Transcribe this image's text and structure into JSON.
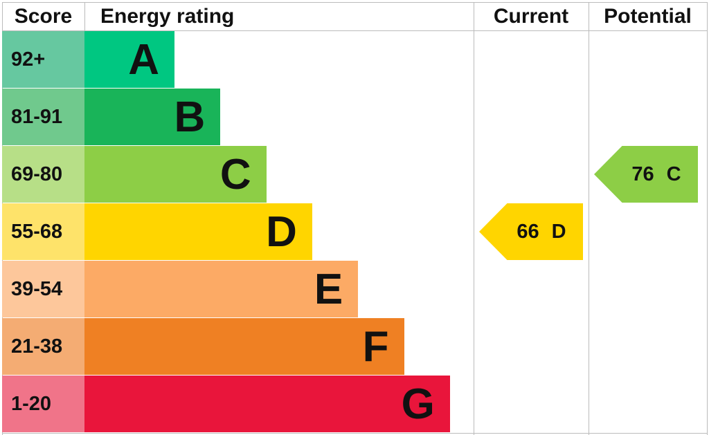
{
  "chart_data": {
    "type": "bar",
    "headers": {
      "score": "Score",
      "rating": "Energy rating",
      "current": "Current",
      "potential": "Potential"
    },
    "bands": [
      {
        "letter": "A",
        "range": "92+",
        "color": "#00c781",
        "score_color": "#66c8a0"
      },
      {
        "letter": "B",
        "range": "81-91",
        "color": "#19b459",
        "score_color": "#70c98d"
      },
      {
        "letter": "C",
        "range": "69-80",
        "color": "#8dce46",
        "score_color": "#b7df87"
      },
      {
        "letter": "D",
        "range": "55-68",
        "color": "#ffd500",
        "score_color": "#fee36a"
      },
      {
        "letter": "E",
        "range": "39-54",
        "color": "#fcaa65",
        "score_color": "#fdc79b"
      },
      {
        "letter": "F",
        "range": "21-38",
        "color": "#ef8023",
        "score_color": "#f4ac73"
      },
      {
        "letter": "G",
        "range": "1-20",
        "color": "#e9153b",
        "score_color": "#f07489"
      }
    ],
    "current": {
      "value": 66,
      "letter": "D",
      "label": "66 D",
      "color": "#ffd500"
    },
    "potential": {
      "value": 76,
      "letter": "C",
      "label": "76 C",
      "color": "#8dce46"
    }
  }
}
